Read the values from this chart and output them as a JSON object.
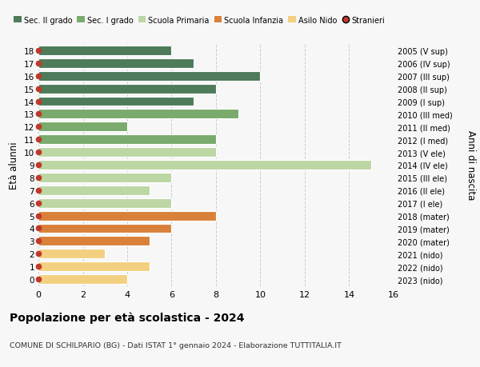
{
  "ages": [
    18,
    17,
    16,
    15,
    14,
    13,
    12,
    11,
    10,
    9,
    8,
    7,
    6,
    5,
    4,
    3,
    2,
    1,
    0
  ],
  "right_labels": [
    "2005 (V sup)",
    "2006 (IV sup)",
    "2007 (III sup)",
    "2008 (II sup)",
    "2009 (I sup)",
    "2010 (III med)",
    "2011 (II med)",
    "2012 (I med)",
    "2013 (V ele)",
    "2014 (IV ele)",
    "2015 (III ele)",
    "2016 (II ele)",
    "2017 (I ele)",
    "2018 (mater)",
    "2019 (mater)",
    "2020 (mater)",
    "2021 (nido)",
    "2022 (nido)",
    "2023 (nido)"
  ],
  "values": [
    6,
    7,
    10,
    8,
    7,
    9,
    4,
    8,
    8,
    15,
    6,
    5,
    6,
    8,
    6,
    5,
    3,
    5,
    4
  ],
  "bar_colors": [
    "#4e7b5a",
    "#4e7b5a",
    "#4e7b5a",
    "#4e7b5a",
    "#4e7b5a",
    "#7aaa6c",
    "#7aaa6c",
    "#7aaa6c",
    "#bcd6a4",
    "#bcd6a4",
    "#bcd6a4",
    "#bcd6a4",
    "#bcd6a4",
    "#d9813a",
    "#d9813a",
    "#d9813a",
    "#f2d080",
    "#f2d080",
    "#f2d080"
  ],
  "legend_labels": [
    "Sec. II grado",
    "Sec. I grado",
    "Scuola Primaria",
    "Scuola Infanzia",
    "Asilo Nido",
    "Stranieri"
  ],
  "legend_colors": [
    "#4e7b5a",
    "#7aaa6c",
    "#bcd6a4",
    "#d9813a",
    "#f2d080",
    "#c0392b"
  ],
  "ylabel": "Età alunni",
  "right_ylabel": "Anni di nascita",
  "title": "Popolazione per età scolastica - 2024",
  "subtitle": "COMUNE DI SCHILPARIO (BG) - Dati ISTAT 1° gennaio 2024 - Elaborazione TUTTITALIA.IT",
  "xlim": [
    0,
    16
  ],
  "ylim": [
    -0.55,
    18.55
  ],
  "xticks": [
    0,
    2,
    4,
    6,
    8,
    10,
    12,
    14,
    16
  ],
  "background_color": "#f7f7f7",
  "grid_color": "#cccccc",
  "stranieri_color": "#c0392b",
  "bar_height": 0.75
}
